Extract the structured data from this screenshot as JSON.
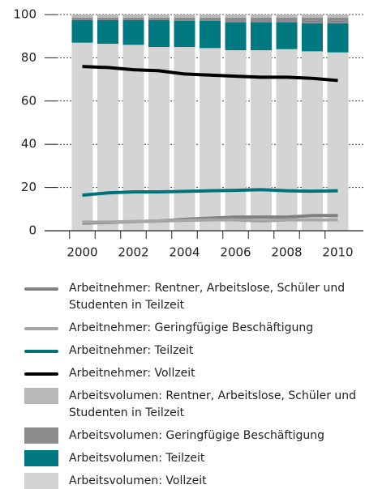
{
  "chart_data": {
    "type": "bar",
    "stacked": true,
    "x": [
      2000,
      2001,
      2002,
      2003,
      2004,
      2005,
      2006,
      2007,
      2008,
      2009,
      2010
    ],
    "xlim": [
      1999,
      2011
    ],
    "xticks": [
      2000,
      2002,
      2004,
      2006,
      2008,
      2010
    ],
    "ylim": [
      0,
      100
    ],
    "yticks": [
      0,
      20,
      40,
      60,
      80,
      100
    ],
    "grid": true,
    "series": [
      {
        "name": "Arbeitnehmer: Rentner, Arbeitslose, Schüler und Studenten in Teilzeit",
        "type": "line",
        "color": "#808080",
        "values": [
          3.5,
          3.8,
          4.2,
          4.5,
          5.3,
          5.8,
          6.3,
          6.3,
          6.3,
          7,
          7
        ]
      },
      {
        "name": "Arbeitnehmer: Geringfügige Beschäftigung",
        "type": "line",
        "color": "#a6a6a6",
        "values": [
          4,
          4,
          4.2,
          4.5,
          4.8,
          5,
          5,
          4.5,
          5,
          5,
          5
        ]
      },
      {
        "name": "Arbeitnehmer: Teilzeit",
        "type": "line",
        "color": "#00737a",
        "values": [
          16.5,
          17.5,
          18,
          18,
          18.2,
          18.5,
          18.7,
          19,
          18.5,
          18.3,
          18.5
        ]
      },
      {
        "name": "Arbeitnehmer: Vollzeit",
        "type": "line",
        "color": "#000000",
        "values": [
          76,
          75.5,
          74.5,
          74,
          72.5,
          72,
          71.5,
          71,
          71,
          70.5,
          69.5
        ]
      },
      {
        "name": "Arbeitsvolumen: Rentner, Arbeitslose, Schüler und Studenten in Teilzeit",
        "type": "bar",
        "color": "#b8b8b8",
        "values": [
          1.5,
          1.5,
          1.5,
          1.5,
          1.5,
          1.5,
          1.5,
          1.5,
          1.5,
          1.5,
          1.5
        ]
      },
      {
        "name": "Arbeitsvolumen: Geringfügige Beschäftigung",
        "type": "bar",
        "color": "#8c8c8c",
        "values": [
          1,
          1,
          1,
          1,
          1.5,
          1.5,
          2,
          2,
          2,
          2.5,
          2.5
        ]
      },
      {
        "name": "Arbeitsvolumen: Teilzeit",
        "type": "bar",
        "color": "#007a80",
        "values": [
          10.5,
          11,
          11.5,
          12.5,
          12,
          12.5,
          13,
          13,
          12.5,
          13,
          13.5
        ]
      },
      {
        "name": "Arbeitsvolumen: Vollzeit",
        "type": "bar",
        "color": "#d4d4d4",
        "values": [
          87,
          86.5,
          86,
          85,
          85,
          84.5,
          83.5,
          83.5,
          84,
          83,
          82.5
        ]
      }
    ]
  }
}
